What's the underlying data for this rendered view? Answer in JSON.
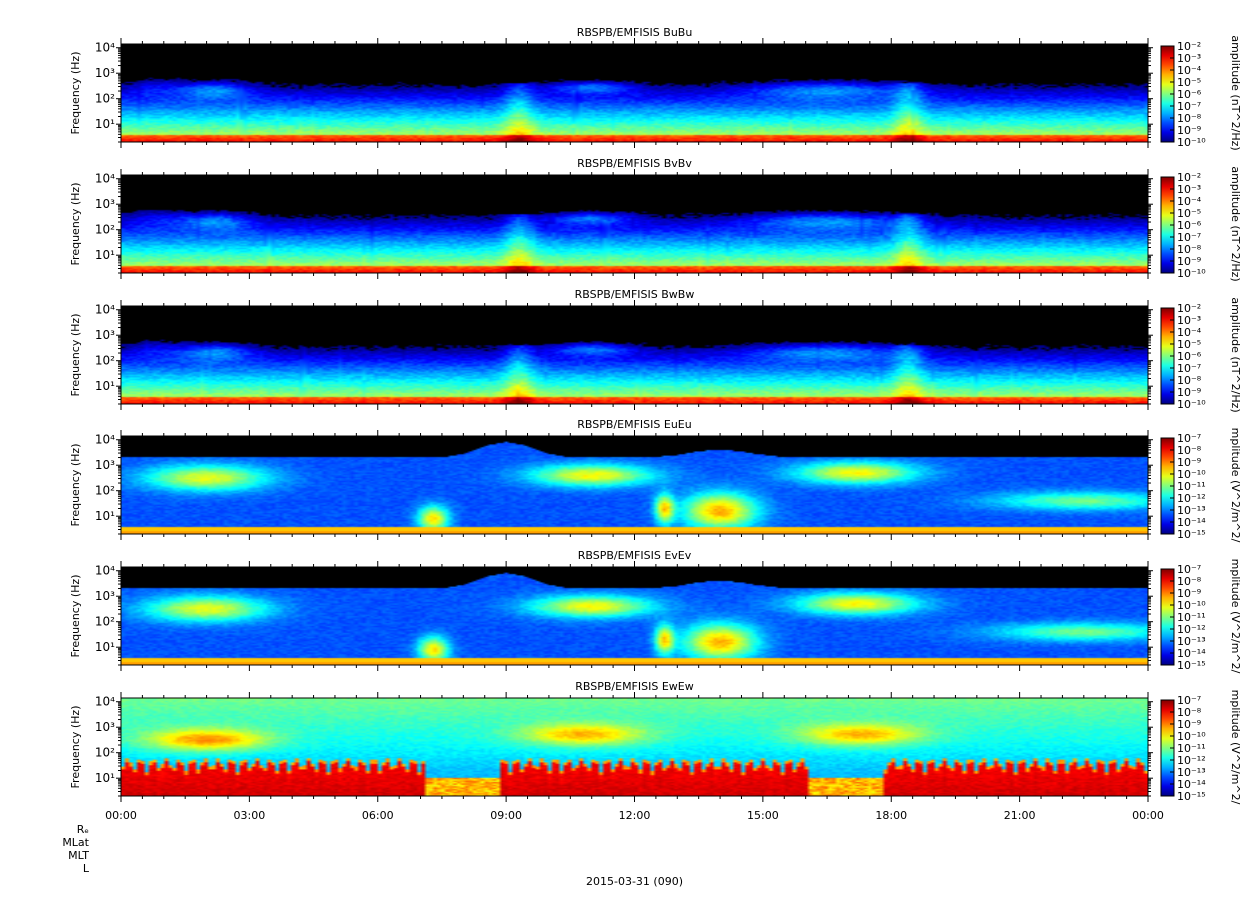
{
  "chart_data": {
    "type": "heatmap",
    "x_tick_labels": [
      "00:00",
      "03:00",
      "06:00",
      "09:00",
      "12:00",
      "15:00",
      "18:00",
      "21:00",
      "00:00"
    ],
    "x_range_hours": [
      0,
      24
    ],
    "x_major_step_hours": 3,
    "x_minor_step_hours": 0.5,
    "y_scale": "log",
    "y_range_hz": [
      2,
      14000
    ],
    "xlabel": "2015-03-31 (090)",
    "ephemeris_labels": [
      "Rₑ",
      "MLat",
      "MLT",
      "L"
    ],
    "colormap": "rainbow (blue = low, red = high), values above detection shown black",
    "panels": [
      {
        "title": "RBSPB/EMFISIS  BuBu",
        "ylabel": "Frequency (Hz)",
        "y_tick_labels": [
          "10¹",
          "10²",
          "10³",
          "10⁴"
        ],
        "colorbar_label": "amplitude (nT^2/Hz)",
        "colorbar_tick_labels": [
          "10⁻²",
          "10⁻³",
          "10⁻⁴",
          "10⁻⁵",
          "10⁻⁶",
          "10⁻⁷",
          "10⁻⁸",
          "10⁻⁹",
          "10⁻¹⁰"
        ],
        "colorbar_log_range": [
          -10,
          -2
        ],
        "kind": "B"
      },
      {
        "title": "RBSPB/EMFISIS  BvBv",
        "ylabel": "Frequency (Hz)",
        "y_tick_labels": [
          "10¹",
          "10²",
          "10³",
          "10⁴"
        ],
        "colorbar_label": "amplitude (nT^2/Hz)",
        "colorbar_tick_labels": [
          "10⁻²",
          "10⁻³",
          "10⁻⁴",
          "10⁻⁵",
          "10⁻⁶",
          "10⁻⁷",
          "10⁻⁸",
          "10⁻⁹",
          "10⁻¹⁰"
        ],
        "colorbar_log_range": [
          -10,
          -2
        ],
        "kind": "B"
      },
      {
        "title": "RBSPB/EMFISIS  BwBw",
        "ylabel": "Frequency (Hz)",
        "y_tick_labels": [
          "10¹",
          "10²",
          "10³",
          "10⁴"
        ],
        "colorbar_label": "amplitude (nT^2/Hz)",
        "colorbar_tick_labels": [
          "10⁻²",
          "10⁻³",
          "10⁻⁴",
          "10⁻⁵",
          "10⁻⁶",
          "10⁻⁷",
          "10⁻⁸",
          "10⁻⁹",
          "10⁻¹⁰"
        ],
        "colorbar_log_range": [
          -10,
          -2
        ],
        "kind": "B"
      },
      {
        "title": "RBSPB/EMFISIS  EuEu",
        "ylabel": "Frequency (Hz)",
        "y_tick_labels": [
          "10¹",
          "10²",
          "10³",
          "10⁴"
        ],
        "colorbar_label": "mplitude (V^2/m^2/",
        "colorbar_tick_labels": [
          "10⁻⁷",
          "10⁻⁸",
          "10⁻⁹",
          "10⁻¹⁰",
          "10⁻¹¹",
          "10⁻¹²",
          "10⁻¹³",
          "10⁻¹⁴",
          "10⁻¹⁵"
        ],
        "colorbar_log_range": [
          -15,
          -7
        ],
        "kind": "E"
      },
      {
        "title": "RBSPB/EMFISIS  EvEv",
        "ylabel": "Frequency (Hz)",
        "y_tick_labels": [
          "10¹",
          "10²",
          "10³",
          "10⁴"
        ],
        "colorbar_label": "mplitude (V^2/m^2/",
        "colorbar_tick_labels": [
          "10⁻⁷",
          "10⁻⁸",
          "10⁻⁹",
          "10⁻¹⁰",
          "10⁻¹¹",
          "10⁻¹²",
          "10⁻¹³",
          "10⁻¹⁴",
          "10⁻¹⁵"
        ],
        "colorbar_log_range": [
          -15,
          -7
        ],
        "kind": "E"
      },
      {
        "title": "RBSPB/EMFISIS  EwEw",
        "ylabel": "Frequency (Hz)",
        "y_tick_labels": [
          "10¹",
          "10²",
          "10³",
          "10⁴"
        ],
        "colorbar_label": "mplitude (V^2/m^2/",
        "colorbar_tick_labels": [
          "10⁻⁷",
          "10⁻⁸",
          "10⁻⁹",
          "10⁻¹⁰",
          "10⁻¹¹",
          "10⁻¹²",
          "10⁻¹³",
          "10⁻¹⁴",
          "10⁻¹⁵"
        ],
        "colorbar_log_range": [
          -15,
          -7
        ],
        "kind": "Ew"
      }
    ]
  }
}
